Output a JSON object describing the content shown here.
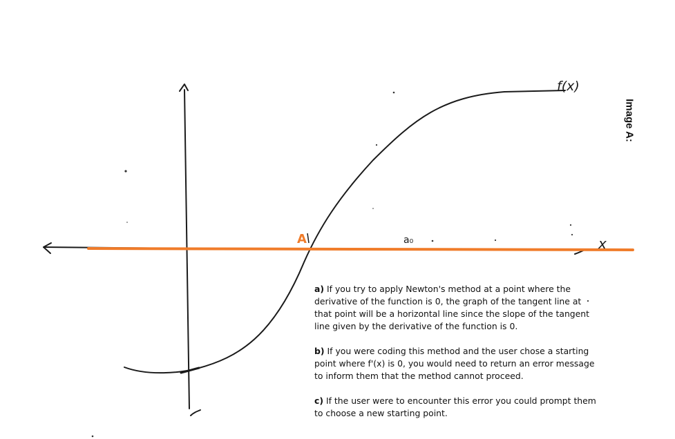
{
  "side_label": "Image A:",
  "graph": {
    "curve_label": "f(x)",
    "x_axis_label": "x",
    "point_label": "A",
    "guess_label": "a₀",
    "highlight_color": "#f07c2a",
    "ink_color": "#1a1a1a"
  },
  "notes": [
    {
      "marker": "a)",
      "text": "If you try to apply Newton's method at a point where the derivative of the function is 0, the graph of the tangent line at that point will be a horizontal line since the slope of the tangent line given by the derivative of the function is 0."
    },
    {
      "marker": "b)",
      "text": "If you were coding this method and the user chose a starting point where f'(x) is 0, you would need to return an error message to inform them that the method cannot proceed."
    },
    {
      "marker": "c)",
      "text": "If the user were to encounter this error you could prompt them to choose a new starting point."
    }
  ]
}
